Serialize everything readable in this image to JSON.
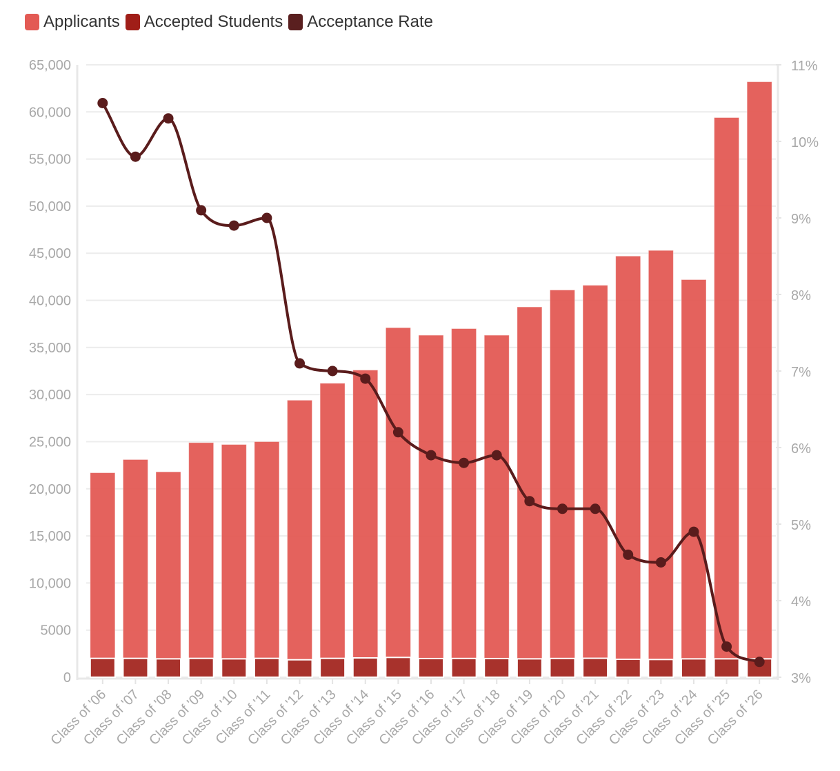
{
  "chart_data": {
    "type": "bar",
    "categories": [
      "Class of '06",
      "Class of '07",
      "Class of '08",
      "Class of '09",
      "Class of '10",
      "Class of '11",
      "Class of '12",
      "Class of '13",
      "Class of '14",
      "Class of '15",
      "Class of '16",
      "Class of '17",
      "Class of '18",
      "Class of '19",
      "Class of '20",
      "Class of '21",
      "Class of '22",
      "Class of '23",
      "Class of '24",
      "Class of '25",
      "Class of '26"
    ],
    "series": [
      {
        "name": "Applicants",
        "type": "bar",
        "axis": "left",
        "color": "#e35a54",
        "values": [
          21700,
          23100,
          21800,
          24900,
          24700,
          25000,
          29400,
          31200,
          32600,
          37100,
          36300,
          37000,
          36300,
          39300,
          41100,
          41600,
          44700,
          45300,
          42200,
          59400,
          63200
        ]
      },
      {
        "name": "Accepted Students",
        "type": "bar",
        "axis": "left",
        "color": "#a8322c",
        "values": [
          2000,
          2000,
          1950,
          2000,
          1950,
          2000,
          1850,
          2000,
          2050,
          2100,
          1980,
          1990,
          1980,
          1950,
          1990,
          2010,
          1900,
          1880,
          1950,
          1950,
          1950
        ]
      },
      {
        "name": "Acceptance Rate",
        "type": "line",
        "axis": "right",
        "color": "#5a1c1c",
        "values": [
          10.5,
          9.8,
          10.3,
          9.1,
          8.9,
          9.0,
          7.1,
          7.0,
          6.9,
          6.2,
          5.9,
          5.8,
          5.9,
          5.3,
          5.2,
          5.2,
          4.6,
          4.5,
          4.9,
          3.4,
          3.2
        ]
      }
    ],
    "y_left": {
      "range": [
        0,
        65000
      ],
      "ticks": [
        "0",
        "5000",
        "10,000",
        "15,000",
        "20,000",
        "25,000",
        "30,000",
        "35,000",
        "40,000",
        "45,000",
        "50,000",
        "55,000",
        "60,000",
        "65,000"
      ]
    },
    "y_right": {
      "range": [
        3,
        11
      ],
      "unit": "%",
      "ticks": [
        "3%",
        "4%",
        "5%",
        "6%",
        "7%",
        "8%",
        "9%",
        "10%",
        "11%"
      ]
    },
    "grid": true,
    "legend": {
      "placement": "top-left",
      "items": [
        {
          "label": "Applicants",
          "color": "#e35a54"
        },
        {
          "label": "Accepted Students",
          "color": "#a01e18"
        },
        {
          "label": "Acceptance Rate",
          "color": "#5a1f1f"
        }
      ]
    },
    "title": "",
    "xlabel": "",
    "ylabel": ""
  }
}
